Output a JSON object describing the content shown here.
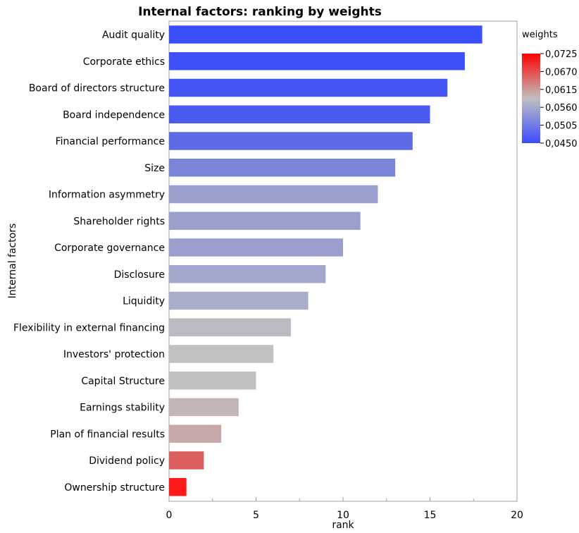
{
  "chart_data": {
    "type": "bar",
    "orientation": "horizontal",
    "title": "Internal factors: ranking by weights",
    "xlabel": "rank",
    "ylabel": "Internal factors",
    "xlim": [
      0,
      20
    ],
    "x_ticks": [
      "0",
      "5",
      "10",
      "15",
      "20"
    ],
    "grid": false,
    "categories": [
      "Audit quality",
      "Corporate ethics",
      "Board of directors structure",
      "Board independence",
      "Financial performance",
      "Size",
      "Information asymmetry",
      "Shareholder rights",
      "Corporate governance",
      "Disclosure",
      "Liquidity",
      "Flexibility in external financing",
      "Investors' protection",
      "Capital Structure",
      "Earnings stability",
      "Plan of financial results",
      "Dividend policy",
      "Ownership structure"
    ],
    "values": [
      18,
      17,
      16,
      15,
      14,
      13,
      12,
      11,
      10,
      9,
      8,
      7,
      6,
      5,
      4,
      3,
      2,
      1
    ],
    "colors": [
      "#3b4efc",
      "#3e51f9",
      "#4455f3",
      "#4a59ee",
      "#5f6be4",
      "#7b85d8",
      "#9a9fcd",
      "#9a9fcd",
      "#9a9fcd",
      "#a2a7cd",
      "#abaecb",
      "#b9bac2",
      "#c1c1c3",
      "#c1c0c1",
      "#c4b5b6",
      "#c7a9a9",
      "#dc5f5f",
      "#ff1a1a"
    ],
    "legend": {
      "title": "weights",
      "placement": "right",
      "type": "colorbar",
      "ticks": [
        "0,0725",
        "0,0670",
        "0,0615",
        "0,0560",
        "0,0505",
        "0,0450"
      ],
      "range": [
        0.045,
        0.0725
      ],
      "gradient_colors": [
        "#ff0000",
        "#c0c0c0",
        "#3b4cff"
      ]
    }
  }
}
